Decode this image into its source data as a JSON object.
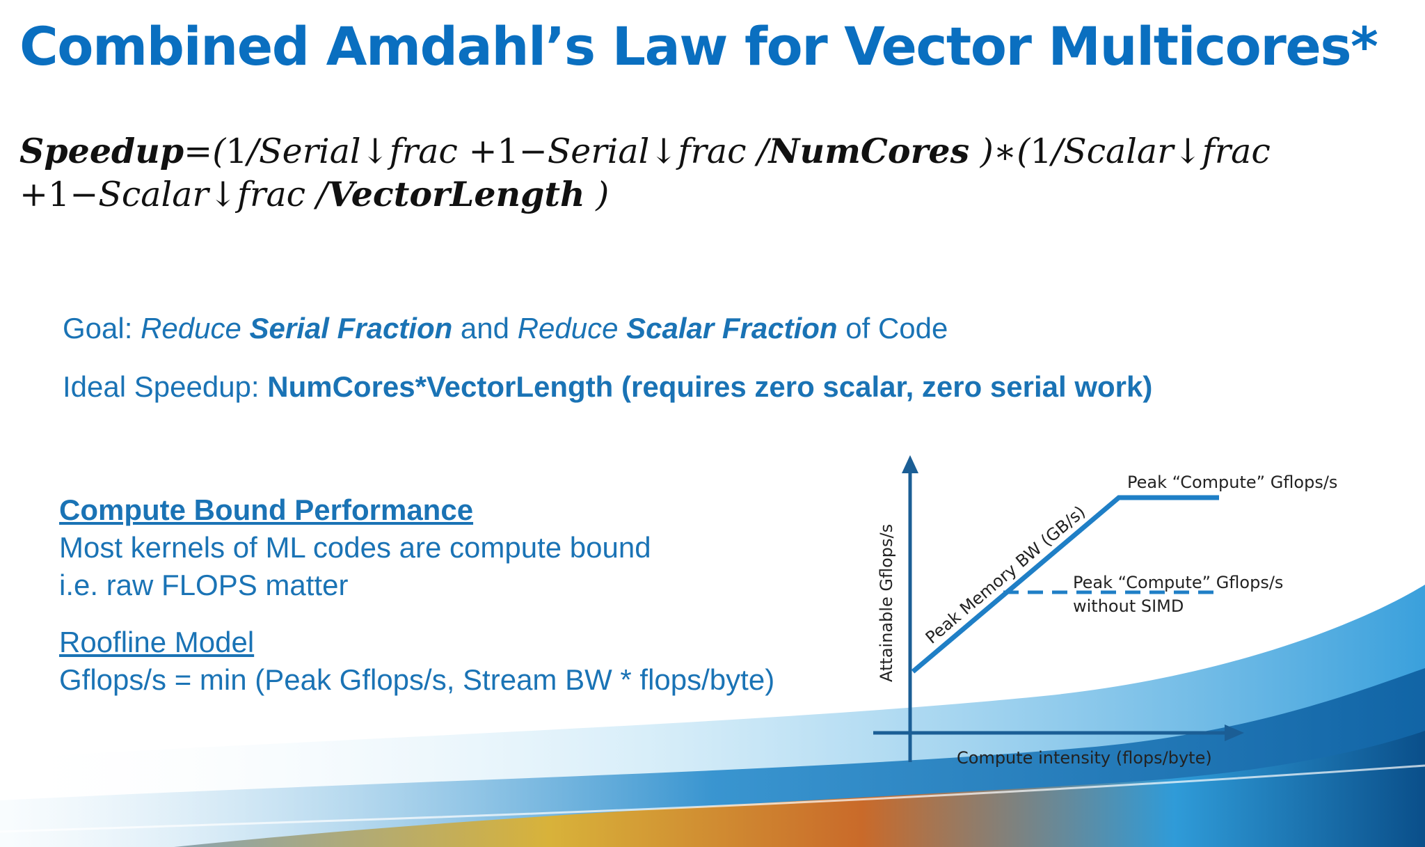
{
  "slide": {
    "title": "Combined Amdahl’s Law for Vector Multicores*",
    "formula": {
      "line1": {
        "speedup": "Speedup",
        "eq": "=",
        "open_paren": "(",
        "one_a": "1",
        "serial_a": "/Serial↓frac",
        "plus_one_a": "+1",
        "minus_a": "−",
        "serial_b": "Serial↓frac",
        "slash_a": " /",
        "numcores": "NumCores",
        "close_mult": "  )∗",
        "open_paren_2": "(",
        "one_b": "1",
        "scalar_a": "/Scalar↓frac"
      },
      "line2": {
        "plus_one": "+1",
        "minus": "−",
        "scalar_b": "Scalar↓frac",
        "slash": " /",
        "vectorlength": "VectorLength",
        "close": "  )"
      }
    },
    "goal": {
      "prefix": "Goal:  ",
      "reduce_1": "Reduce ",
      "serial_fraction": "Serial Fraction",
      "and": " and ",
      "reduce_2": "Reduce ",
      "scalar_fraction": "Scalar Fraction",
      "suffix": " of Code"
    },
    "ideal": {
      "prefix": "Ideal Speedup:  ",
      "value": "NumCores*VectorLength  (requires zero scalar, zero serial work)"
    },
    "compute_bound": {
      "heading": "Compute Bound Performance ",
      "line1": "Most kernels of ML codes are compute bound",
      "line2": "i.e. raw FLOPS matter"
    },
    "roofline": {
      "heading": "Roofline Model",
      "formula": "Gflops/s = min (Peak Gflops/s, Stream BW * flops/byte)"
    }
  },
  "diagram": {
    "y_axis_label": "Attainable Gflops/s",
    "x_axis_label": "Compute intensity (flops/byte)",
    "slope_label": "Peak Memory BW (GB/s)",
    "peak_label": "Peak “Compute” Gflops/s",
    "nosimd_label_1": "Peak “Compute” Gflops/s",
    "nosimd_label_2": "without SIMD",
    "colors": {
      "line": "#1f7fc6",
      "axis": "#1b5e95"
    }
  }
}
